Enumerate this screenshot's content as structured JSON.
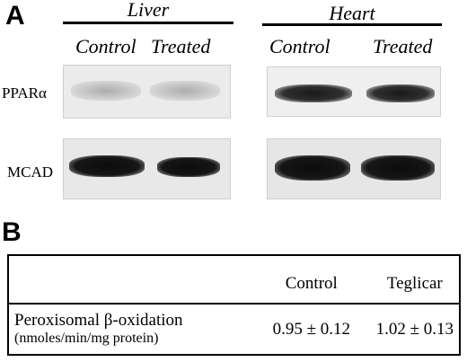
{
  "panel_a": {
    "letter": "A",
    "groups": [
      {
        "title": "Liver",
        "columns": [
          "Control",
          "Treated"
        ]
      },
      {
        "title": "Heart",
        "columns": [
          "Control",
          "Treated"
        ]
      }
    ],
    "rows": [
      "PPARα",
      "MCAD"
    ]
  },
  "panel_b": {
    "letter": "B",
    "table": {
      "headers": [
        "",
        "Control",
        "Teglicar"
      ],
      "row_label": "Peroxisomal β-oxidation",
      "row_sublabel": "(nmoles/min/mg protein)",
      "values": [
        "0.95 ± 0.12",
        "1.02 ± 0.13"
      ]
    }
  }
}
